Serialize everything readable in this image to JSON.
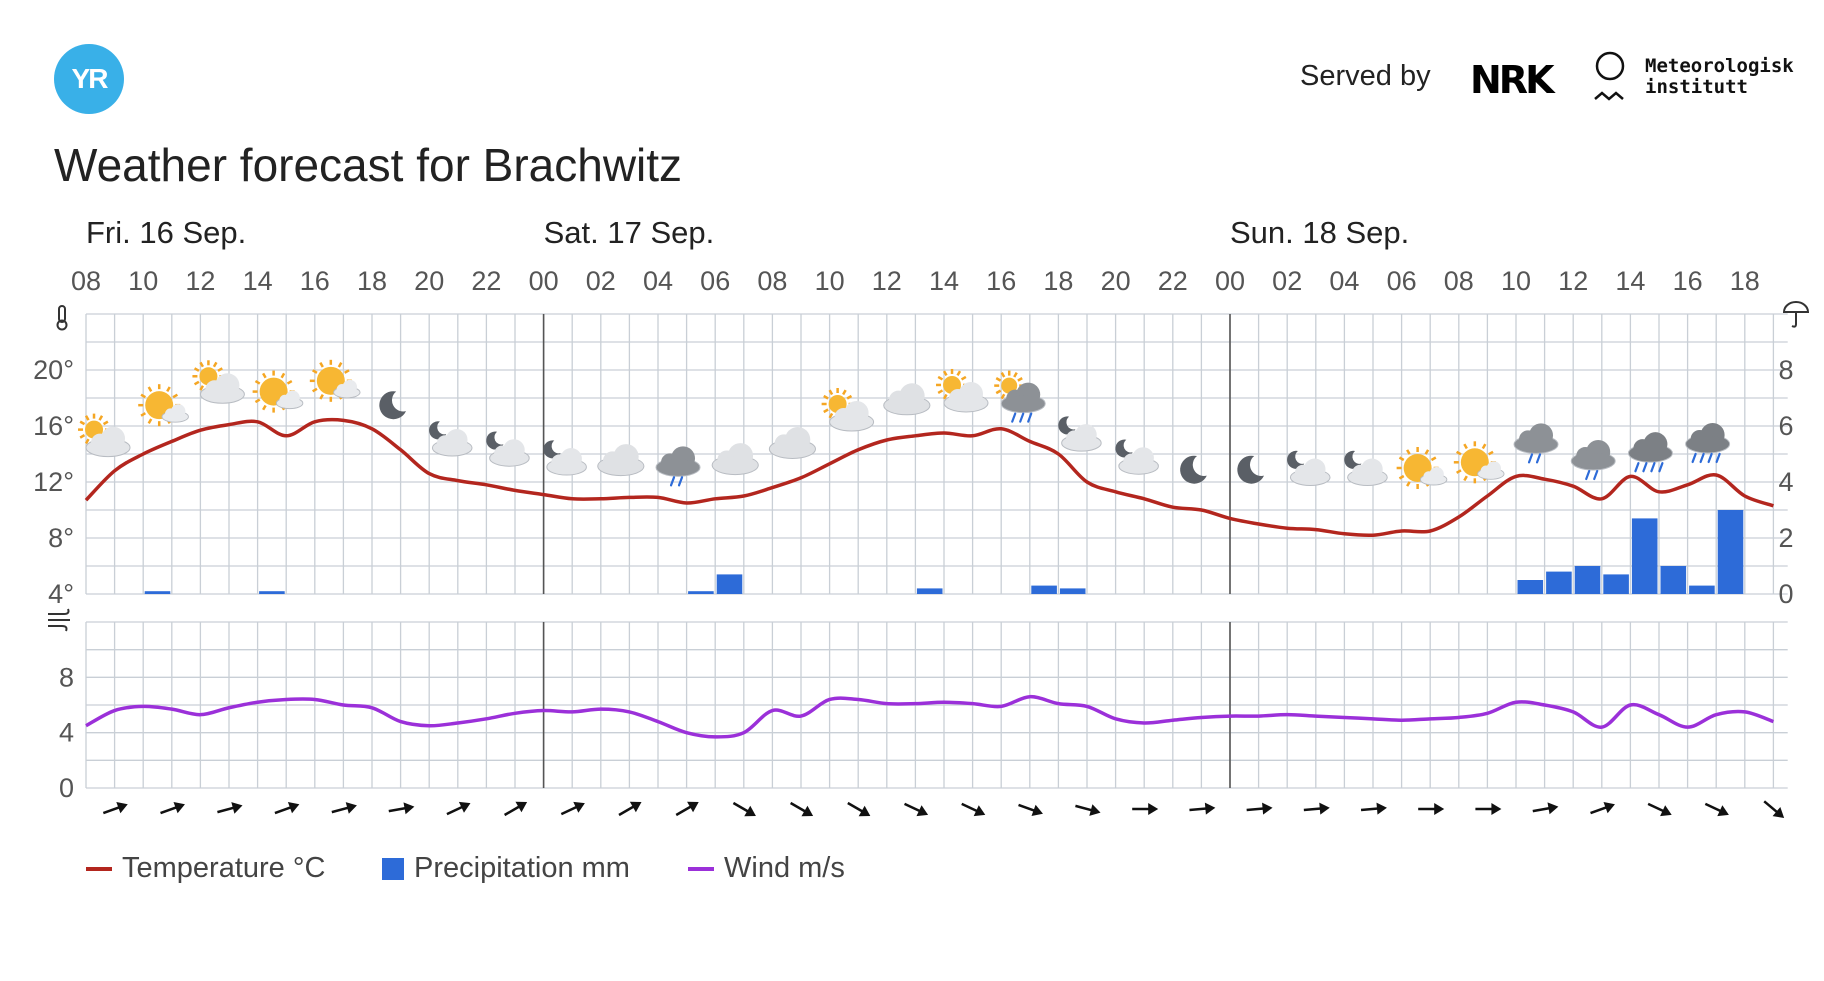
{
  "header": {
    "logo_text": "YR",
    "served_by": "Served by",
    "nrk": "NRK",
    "met_line1": "Meteorologisk",
    "met_line2": "institutt"
  },
  "title": "Weather forecast for Brachwitz",
  "colors": {
    "temperature": "#b3261e",
    "precipitation": "#2d6bd8",
    "wind": "#9b30d9",
    "grid": "#c9cfd6",
    "yr_blue": "#39b0e8"
  },
  "legend": [
    {
      "label": "Temperature °C",
      "color": "#b3261e",
      "kind": "line"
    },
    {
      "label": "Precipitation mm",
      "color": "#2d6bd8",
      "kind": "box"
    },
    {
      "label": "Wind m/s",
      "color": "#9b30d9",
      "kind": "line"
    }
  ],
  "chart_data": {
    "type": "line",
    "days": [
      {
        "label": "Fri. 16 Sep.",
        "start_index": 0
      },
      {
        "label": "Sat. 17 Sep.",
        "start_index": 16
      },
      {
        "label": "Sun. 18 Sep.",
        "start_index": 40
      }
    ],
    "hour_labels": [
      "08",
      "10",
      "12",
      "14",
      "16",
      "18",
      "20",
      "22",
      "00",
      "02",
      "04",
      "06",
      "08",
      "10",
      "12",
      "14",
      "16",
      "18",
      "20",
      "22",
      "00",
      "02",
      "04",
      "06",
      "08",
      "10",
      "12",
      "14",
      "16",
      "18"
    ],
    "temp_axis": {
      "ticks": [
        "20°",
        "16°",
        "12°",
        "8°",
        "4°"
      ],
      "values": [
        20,
        16,
        12,
        8,
        4
      ],
      "ylim": [
        4,
        24
      ]
    },
    "precip_axis": {
      "ticks": [
        "8",
        "6",
        "4",
        "2",
        "0"
      ],
      "values": [
        8,
        6,
        4,
        2,
        0
      ],
      "ylim": [
        0,
        10
      ]
    },
    "wind_axis": {
      "ticks": [
        "8",
        "4",
        "0"
      ],
      "values": [
        8,
        4,
        0
      ],
      "ylim": [
        0,
        12
      ]
    },
    "grid": true,
    "temperature": [
      [
        8,
        10.7
      ],
      [
        9,
        12.8
      ],
      [
        10,
        14.0
      ],
      [
        11,
        14.9
      ],
      [
        12,
        15.7
      ],
      [
        13,
        16.1
      ],
      [
        14,
        16.3
      ],
      [
        15,
        15.3
      ],
      [
        16,
        16.3
      ],
      [
        17,
        16.4
      ],
      [
        18,
        15.8
      ],
      [
        19,
        14.3
      ],
      [
        20,
        12.6
      ],
      [
        21,
        12.1
      ],
      [
        22,
        11.8
      ],
      [
        23,
        11.4
      ],
      [
        24,
        11.1
      ],
      [
        25,
        10.8
      ],
      [
        26,
        10.8
      ],
      [
        27,
        10.9
      ],
      [
        28,
        10.9
      ],
      [
        29,
        10.5
      ],
      [
        30,
        10.8
      ],
      [
        31,
        11.0
      ],
      [
        32,
        11.6
      ],
      [
        33,
        12.3
      ],
      [
        34,
        13.3
      ],
      [
        35,
        14.3
      ],
      [
        36,
        15.0
      ],
      [
        37,
        15.3
      ],
      [
        38,
        15.5
      ],
      [
        39,
        15.3
      ],
      [
        40,
        15.8
      ],
      [
        41,
        14.9
      ],
      [
        42,
        14.0
      ],
      [
        43,
        12.0
      ],
      [
        44,
        11.3
      ],
      [
        45,
        10.8
      ],
      [
        46,
        10.2
      ],
      [
        47,
        10.0
      ],
      [
        48,
        9.4
      ],
      [
        49,
        9.0
      ],
      [
        50,
        8.7
      ],
      [
        51,
        8.6
      ],
      [
        52,
        8.3
      ],
      [
        53,
        8.2
      ],
      [
        54,
        8.5
      ],
      [
        55,
        8.5
      ],
      [
        56,
        9.5
      ],
      [
        57,
        11.0
      ],
      [
        58,
        12.4
      ],
      [
        59,
        12.2
      ],
      [
        60,
        11.7
      ],
      [
        61,
        10.8
      ],
      [
        62,
        12.4
      ],
      [
        63,
        11.3
      ],
      [
        64,
        11.8
      ],
      [
        65,
        12.5
      ],
      [
        66,
        11.0
      ],
      [
        67,
        10.3
      ]
    ],
    "wind": [
      [
        8,
        4.5
      ],
      [
        9,
        5.6
      ],
      [
        10,
        5.9
      ],
      [
        11,
        5.7
      ],
      [
        12,
        5.3
      ],
      [
        13,
        5.8
      ],
      [
        14,
        6.2
      ],
      [
        15,
        6.4
      ],
      [
        16,
        6.4
      ],
      [
        17,
        6.0
      ],
      [
        18,
        5.8
      ],
      [
        19,
        4.8
      ],
      [
        20,
        4.5
      ],
      [
        21,
        4.7
      ],
      [
        22,
        5.0
      ],
      [
        23,
        5.4
      ],
      [
        24,
        5.6
      ],
      [
        25,
        5.5
      ],
      [
        26,
        5.7
      ],
      [
        27,
        5.5
      ],
      [
        28,
        4.8
      ],
      [
        29,
        4.0
      ],
      [
        30,
        3.7
      ],
      [
        31,
        4.0
      ],
      [
        32,
        5.6
      ],
      [
        33,
        5.2
      ],
      [
        34,
        6.4
      ],
      [
        35,
        6.4
      ],
      [
        36,
        6.1
      ],
      [
        37,
        6.1
      ],
      [
        38,
        6.2
      ],
      [
        39,
        6.1
      ],
      [
        40,
        5.9
      ],
      [
        41,
        6.6
      ],
      [
        42,
        6.1
      ],
      [
        43,
        5.9
      ],
      [
        44,
        5.0
      ],
      [
        45,
        4.7
      ],
      [
        46,
        4.9
      ],
      [
        47,
        5.1
      ],
      [
        48,
        5.2
      ],
      [
        49,
        5.2
      ],
      [
        50,
        5.3
      ],
      [
        51,
        5.2
      ],
      [
        52,
        5.1
      ],
      [
        53,
        5.0
      ],
      [
        54,
        4.9
      ],
      [
        55,
        5.0
      ],
      [
        56,
        5.1
      ],
      [
        57,
        5.4
      ],
      [
        58,
        6.2
      ],
      [
        59,
        6.0
      ],
      [
        60,
        5.5
      ],
      [
        61,
        4.4
      ],
      [
        62,
        6.0
      ],
      [
        63,
        5.3
      ],
      [
        64,
        4.4
      ],
      [
        65,
        5.3
      ],
      [
        66,
        5.5
      ],
      [
        67,
        4.8
      ]
    ],
    "precipitation": [
      {
        "x": 10,
        "value": 0.1
      },
      {
        "x": 14,
        "value": 0.1
      },
      {
        "x": 29,
        "value": 0.1
      },
      {
        "x": 30,
        "value": 0.7
      },
      {
        "x": 37,
        "value": 0.2
      },
      {
        "x": 41,
        "value": 0.3
      },
      {
        "x": 42,
        "value": 0.2
      },
      {
        "x": 58,
        "value": 0.5
      },
      {
        "x": 59,
        "value": 0.8
      },
      {
        "x": 60,
        "value": 1.0
      },
      {
        "x": 61,
        "value": 0.7
      },
      {
        "x": 62,
        "value": 2.7
      },
      {
        "x": 63,
        "value": 1.0
      },
      {
        "x": 64,
        "value": 0.3
      },
      {
        "x": 65,
        "value": 3.0
      }
    ],
    "symbols": [
      {
        "x": 8,
        "type": "partly-cloudy-day"
      },
      {
        "x": 10,
        "type": "fair-day"
      },
      {
        "x": 12,
        "type": "partly-cloudy-day"
      },
      {
        "x": 14,
        "type": "fair-day"
      },
      {
        "x": 16,
        "type": "fair-day"
      },
      {
        "x": 18,
        "type": "clear-night"
      },
      {
        "x": 20,
        "type": "partly-cloudy-night"
      },
      {
        "x": 22,
        "type": "partly-cloudy-night"
      },
      {
        "x": 24,
        "type": "partly-cloudy-night"
      },
      {
        "x": 26,
        "type": "cloudy"
      },
      {
        "x": 28,
        "type": "light-rain"
      },
      {
        "x": 30,
        "type": "cloudy"
      },
      {
        "x": 32,
        "type": "cloudy"
      },
      {
        "x": 34,
        "type": "partly-cloudy-day"
      },
      {
        "x": 36,
        "type": "cloudy"
      },
      {
        "x": 38,
        "type": "partly-cloudy-day"
      },
      {
        "x": 40,
        "type": "rain-showers-day"
      },
      {
        "x": 42,
        "type": "partly-cloudy-night"
      },
      {
        "x": 44,
        "type": "partly-cloudy-night"
      },
      {
        "x": 46,
        "type": "clear-night"
      },
      {
        "x": 48,
        "type": "clear-night"
      },
      {
        "x": 50,
        "type": "partly-cloudy-night"
      },
      {
        "x": 52,
        "type": "partly-cloudy-night"
      },
      {
        "x": 54,
        "type": "fair-day"
      },
      {
        "x": 56,
        "type": "fair-day"
      },
      {
        "x": 58,
        "type": "light-rain"
      },
      {
        "x": 60,
        "type": "light-rain"
      },
      {
        "x": 62,
        "type": "rain"
      },
      {
        "x": 64,
        "type": "rain"
      }
    ],
    "wind_directions": [
      {
        "x": 9,
        "deg": 250
      },
      {
        "x": 11,
        "deg": 250
      },
      {
        "x": 13,
        "deg": 255
      },
      {
        "x": 15,
        "deg": 250
      },
      {
        "x": 17,
        "deg": 255
      },
      {
        "x": 19,
        "deg": 260
      },
      {
        "x": 21,
        "deg": 245
      },
      {
        "x": 23,
        "deg": 240
      },
      {
        "x": 25,
        "deg": 245
      },
      {
        "x": 27,
        "deg": 240
      },
      {
        "x": 29,
        "deg": 240
      },
      {
        "x": 31,
        "deg": 300
      },
      {
        "x": 33,
        "deg": 300
      },
      {
        "x": 35,
        "deg": 300
      },
      {
        "x": 37,
        "deg": 295
      },
      {
        "x": 39,
        "deg": 295
      },
      {
        "x": 41,
        "deg": 290
      },
      {
        "x": 43,
        "deg": 285
      },
      {
        "x": 45,
        "deg": 270
      },
      {
        "x": 47,
        "deg": 265
      },
      {
        "x": 49,
        "deg": 265
      },
      {
        "x": 51,
        "deg": 265
      },
      {
        "x": 53,
        "deg": 265
      },
      {
        "x": 55,
        "deg": 270
      },
      {
        "x": 57,
        "deg": 270
      },
      {
        "x": 59,
        "deg": 260
      },
      {
        "x": 61,
        "deg": 250
      },
      {
        "x": 63,
        "deg": 295
      },
      {
        "x": 65,
        "deg": 295
      },
      {
        "x": 67,
        "deg": 310
      }
    ]
  }
}
